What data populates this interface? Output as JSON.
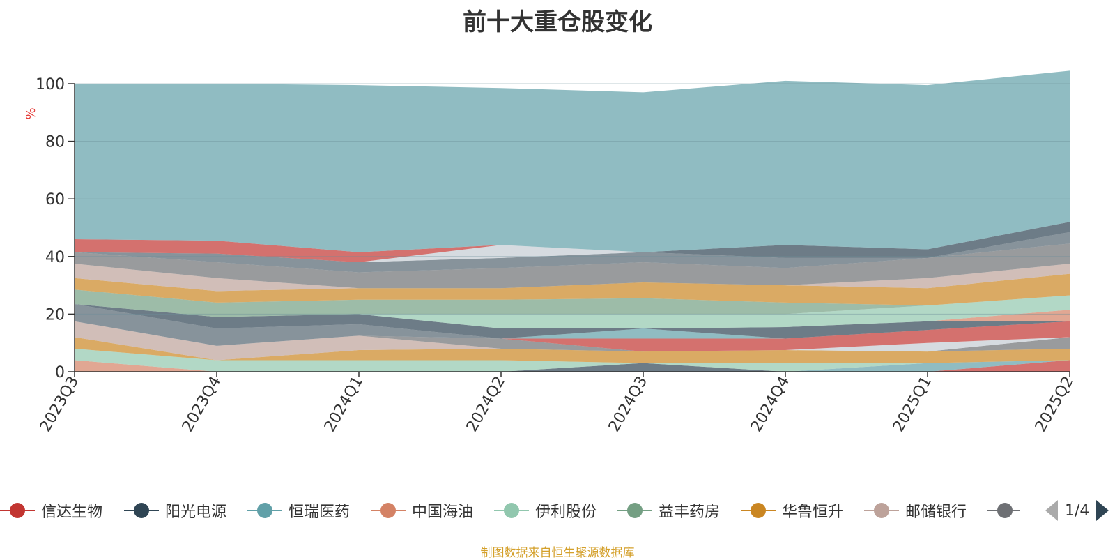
{
  "title": "前十大重仓股变化",
  "source_note": "制图数据来自恒生聚源数据库",
  "pager": {
    "text": "1/4"
  },
  "legend": [
    {
      "label": "信达生物",
      "color": "#c23531"
    },
    {
      "label": "阳光电源",
      "color": "#2f4554"
    },
    {
      "label": "恒瑞医药",
      "color": "#61a0a8"
    },
    {
      "label": "中国海油",
      "color": "#d48265"
    },
    {
      "label": "伊利股份",
      "color": "#91c7ae"
    },
    {
      "label": "益丰药房",
      "color": "#749f83"
    },
    {
      "label": "华鲁恒升",
      "color": "#ca8622"
    },
    {
      "label": "邮储银行",
      "color": "#bda29a"
    },
    {
      "label": "",
      "color": "#6e7074"
    }
  ],
  "chart_data": {
    "type": "area",
    "title": "前十大重仓股变化",
    "ylabel": "%",
    "ylim": [
      0,
      100
    ],
    "yticks": [
      0,
      20,
      40,
      60,
      80,
      100
    ],
    "grid": true,
    "stacked": true,
    "categories": [
      "2023Q3",
      "2023Q4",
      "2024Q1",
      "2024Q2",
      "2024Q3",
      "2024Q4",
      "2025Q1",
      "2025Q2"
    ],
    "series": [
      {
        "color": "#c23531",
        "values": [
          0,
          0,
          0,
          0,
          0,
          0,
          0,
          4
        ]
      },
      {
        "color": "#2f4554",
        "values": [
          0,
          0,
          0,
          0,
          3,
          0,
          0,
          0
        ]
      },
      {
        "color": "#61a0a8",
        "values": [
          0,
          0,
          0,
          0,
          0,
          0,
          3,
          0
        ]
      },
      {
        "color": "#d48265",
        "values": [
          4,
          0,
          0,
          0,
          0,
          0,
          0,
          0
        ]
      },
      {
        "color": "#91c7ae",
        "values": [
          4,
          4,
          4,
          4,
          0,
          3,
          0,
          0
        ]
      },
      {
        "color": "#749f83",
        "values": [
          0,
          0,
          0,
          0,
          0,
          0,
          0,
          0
        ]
      },
      {
        "color": "#ca8622",
        "values": [
          4,
          0,
          3.5,
          4,
          4,
          4.5,
          4,
          4
        ]
      },
      {
        "color": "#bda29a",
        "values": [
          5.5,
          5,
          5,
          0,
          0,
          0,
          0,
          0
        ]
      },
      {
        "color": "#6e7074",
        "values": [
          0,
          0,
          0,
          3.5,
          0,
          0,
          0,
          4
        ]
      },
      {
        "color": "#546570",
        "values": [
          6,
          6,
          4,
          0,
          0,
          0,
          0,
          0
        ]
      },
      {
        "color": "#c4ccd3",
        "values": [
          0,
          0,
          0,
          0,
          0,
          0,
          3,
          0
        ]
      },
      {
        "color": "#c23531",
        "values": [
          0,
          0,
          0,
          0,
          4.5,
          4,
          4.5,
          5.5
        ]
      },
      {
        "color": "#61a0a8",
        "values": [
          0,
          0,
          0,
          0,
          3.5,
          0,
          0,
          0
        ]
      },
      {
        "color": "#2f4554",
        "values": [
          0,
          4,
          3.5,
          3.5,
          0,
          4,
          3,
          0
        ]
      },
      {
        "color": "#d48265",
        "values": [
          0,
          0,
          0,
          0,
          0,
          0,
          0,
          4
        ]
      },
      {
        "color": "#91c7ae",
        "values": [
          0,
          0,
          0,
          5,
          5,
          4.5,
          5.5,
          5
        ]
      },
      {
        "color": "#749f83",
        "values": [
          5,
          5,
          5,
          5,
          5.5,
          4,
          0,
          0
        ]
      },
      {
        "color": "#ca8622",
        "values": [
          4,
          4,
          4,
          4,
          5.5,
          6,
          6,
          7.5
        ]
      },
      {
        "color": "#bda29a",
        "values": [
          5,
          4.5,
          0,
          0,
          0,
          0,
          3.5,
          3.5
        ]
      },
      {
        "color": "#6e7074",
        "values": [
          4,
          5.5,
          5.5,
          7,
          7,
          6,
          7,
          7
        ]
      },
      {
        "color": "#546570",
        "values": [
          0,
          3,
          3.5,
          3.5,
          3.5,
          3.5,
          0,
          4
        ]
      },
      {
        "color": "#c4ccd3",
        "values": [
          0,
          0,
          0,
          4.5,
          0,
          0,
          0,
          0
        ]
      },
      {
        "color": "#2f4554",
        "values": [
          0,
          0,
          0,
          0,
          0,
          4.5,
          3,
          3.5
        ]
      },
      {
        "color": "#c23531",
        "values": [
          4.5,
          4.5,
          3.5,
          0,
          0,
          0,
          0,
          0
        ]
      },
      {
        "color": "#61a0a8",
        "values": [
          54,
          54.5,
          58,
          54.5,
          55.5,
          57,
          57,
          52.5
        ]
      }
    ]
  }
}
